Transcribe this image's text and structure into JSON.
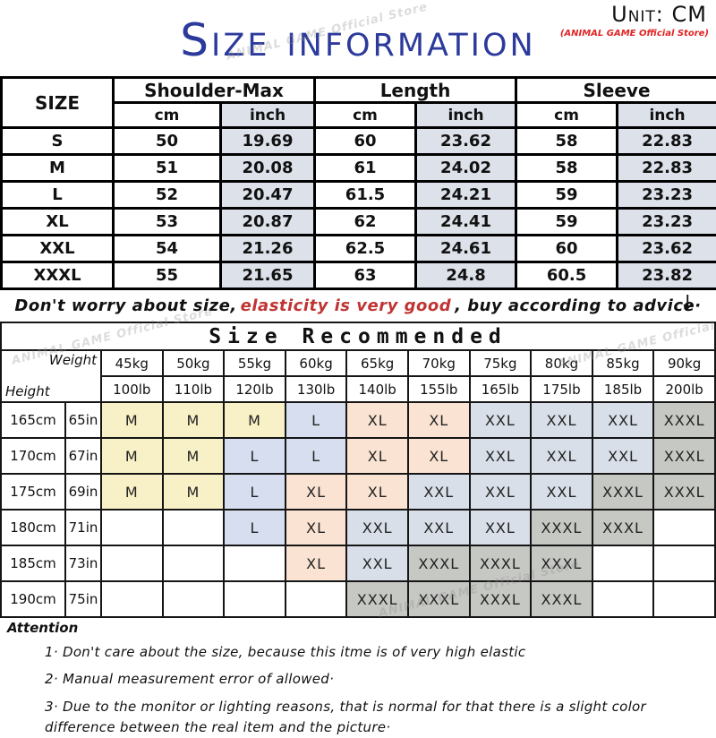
{
  "header": {
    "unit_label": "Unit: CM",
    "store_label": "(ANIMAL GAME Official Store)",
    "title": "Size information",
    "watermark": "ANIMAL GAME Official Store"
  },
  "size_table": {
    "corner_label": "SIZE",
    "groups": [
      {
        "label": "Shoulder-Max"
      },
      {
        "label": "Length"
      },
      {
        "label": "Sleeve"
      }
    ],
    "unit_headers": [
      "cm",
      "inch",
      "cm",
      "inch",
      "cm",
      "inch"
    ],
    "rows": [
      {
        "size": "S",
        "cells": [
          "50",
          "19.69",
          "60",
          "23.62",
          "58",
          "22.83"
        ]
      },
      {
        "size": "M",
        "cells": [
          "51",
          "20.08",
          "61",
          "24.02",
          "58",
          "22.83"
        ]
      },
      {
        "size": "L",
        "cells": [
          "52",
          "20.47",
          "61.5",
          "24.21",
          "59",
          "23.23"
        ]
      },
      {
        "size": "XL",
        "cells": [
          "53",
          "20.87",
          "62",
          "24.41",
          "59",
          "23.23"
        ]
      },
      {
        "size": "XXL",
        "cells": [
          "54",
          "21.26",
          "62.5",
          "24.61",
          "60",
          "23.62"
        ]
      },
      {
        "size": "XXXL",
        "cells": [
          "55",
          "21.65",
          "63",
          "24.8",
          "60.5",
          "23.82"
        ]
      }
    ]
  },
  "advice": {
    "prefix": "Don't worry about size,",
    "highlight": "elasticity is very good",
    "suffix": ", buy according to advice·",
    "arrow": "↓",
    "highlight_color": "#c03434"
  },
  "recommend_table": {
    "title": "Size Recommended",
    "weight_label": "Weight",
    "height_label": "Height",
    "weights_kg": [
      "45kg",
      "50kg",
      "55kg",
      "60kg",
      "65kg",
      "70kg",
      "75kg",
      "80kg",
      "85kg",
      "90kg"
    ],
    "weights_lb": [
      "100lb",
      "110lb",
      "120lb",
      "130lb",
      "140lb",
      "155lb",
      "165lb",
      "175lb",
      "185lb",
      "200lb"
    ],
    "rows": [
      {
        "cm": "165cm",
        "in": "65in",
        "sizes": [
          "M",
          "M",
          "M",
          "L",
          "XL",
          "XL",
          "XXL",
          "XXL",
          "XXL",
          "XXXL"
        ]
      },
      {
        "cm": "170cm",
        "in": "67in",
        "sizes": [
          "M",
          "M",
          "L",
          "L",
          "XL",
          "XL",
          "XXL",
          "XXL",
          "XXL",
          "XXXL"
        ]
      },
      {
        "cm": "175cm",
        "in": "69in",
        "sizes": [
          "M",
          "M",
          "L",
          "XL",
          "XL",
          "XXL",
          "XXL",
          "XXL",
          "XXXL",
          "XXXL"
        ]
      },
      {
        "cm": "180cm",
        "in": "71in",
        "sizes": [
          "",
          "",
          "L",
          "XL",
          "XXL",
          "XXL",
          "XXL",
          "XXXL",
          "XXXL",
          ""
        ]
      },
      {
        "cm": "185cm",
        "in": "73in",
        "sizes": [
          "",
          "",
          "",
          "XL",
          "XXL",
          "XXXL",
          "XXXL",
          "XXXL",
          "",
          ""
        ]
      },
      {
        "cm": "190cm",
        "in": "75in",
        "sizes": [
          "",
          "",
          "",
          "",
          "XXXL",
          "XXXL",
          "XXXL",
          "XXXL",
          "",
          ""
        ]
      }
    ],
    "size_colors": {
      "M": "#f8f0c6",
      "L": "#d7def0",
      "XL": "#fae3d2",
      "XXL": "#d8dfe8",
      "XXXL": "#c6c8c3",
      "": "#ffffff"
    }
  },
  "attention": {
    "heading": "Attention",
    "items": [
      "1· Don't care about the size, because this itme is of very high elastic",
      "2· Manual measurement error of allowed·",
      "3·  Due to the monitor or lighting reasons, that is normal for that there is a slight color difference between the real item and the picture·"
    ]
  }
}
